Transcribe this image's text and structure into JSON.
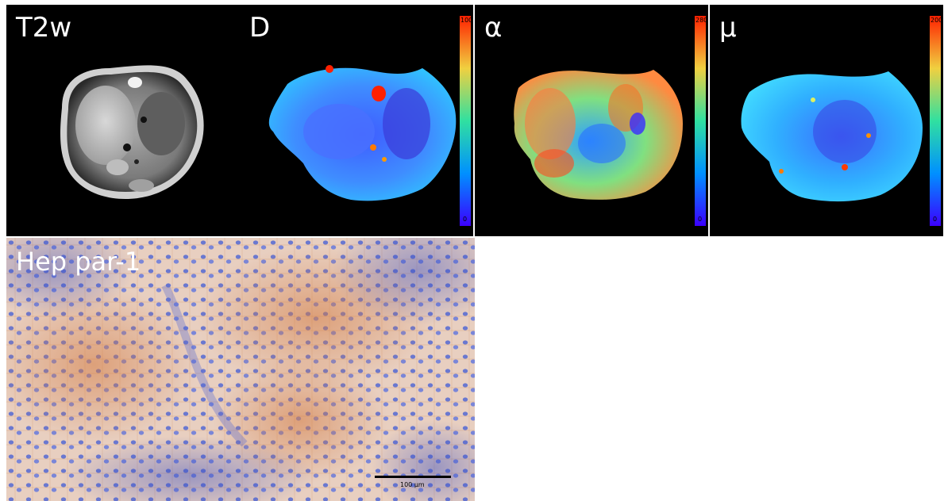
{
  "panels": [
    {
      "key": "t2w",
      "label": "T2w",
      "kind": "mri"
    },
    {
      "key": "d",
      "label": "D",
      "kind": "map",
      "colorbar": {
        "max": "100",
        "min": "0"
      }
    },
    {
      "key": "alpha",
      "label": "α",
      "kind": "map",
      "colorbar": {
        "max": "280",
        "min": "0"
      }
    },
    {
      "key": "mu",
      "label": "μ",
      "kind": "map",
      "colorbar": {
        "max": "200",
        "min": "0"
      }
    },
    {
      "key": "hep",
      "label": "Hep par-1",
      "kind": "histology",
      "scale_bar": "100 μm"
    }
  ],
  "colors": {
    "background_dark": "#000000",
    "stain_brown": "#c8743a",
    "stain_blue": "#3b4fc0",
    "map_low": "#4060ff",
    "map_high": "#ff2a00"
  }
}
